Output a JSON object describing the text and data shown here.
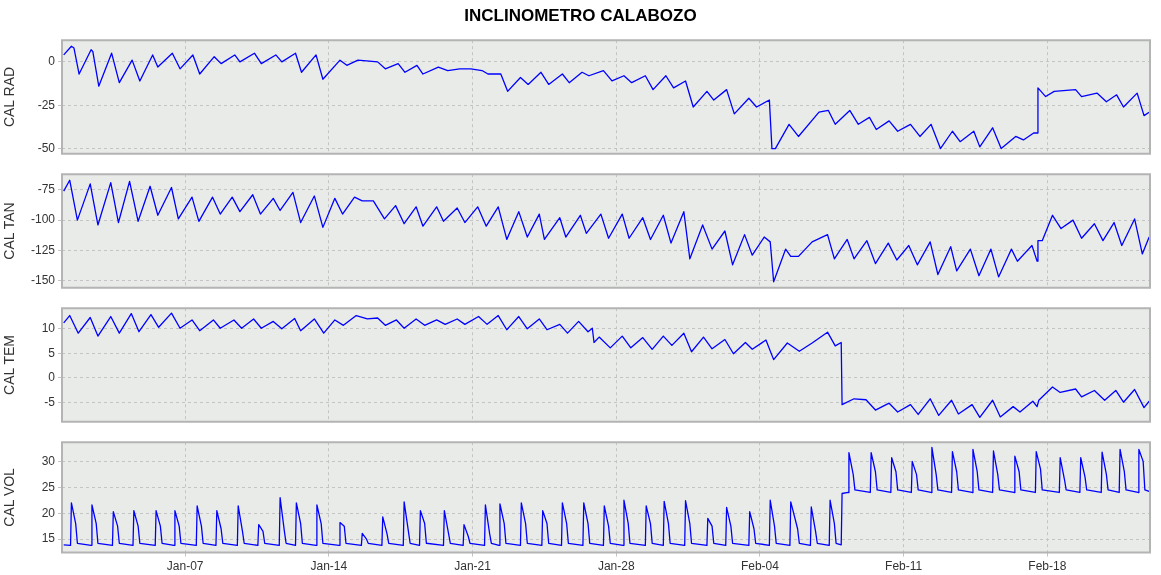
{
  "chart_data": [
    {
      "type": "line",
      "title": "INCLINOMETRO CALABOZO",
      "ylabel": "CAL RAD",
      "xlim": [
        "--01-01",
        "--02-23"
      ],
      "xticks": [
        {
          "value": "--01-07",
          "label": null
        },
        {
          "value": "--01-14",
          "label": null
        },
        {
          "value": "--01-21",
          "label": null
        },
        {
          "value": "--01-28",
          "label": null
        },
        {
          "value": "--02-04",
          "label": null
        },
        {
          "value": "--02-11",
          "label": null
        },
        {
          "value": "--02-18",
          "label": null
        }
      ],
      "ylim": [
        -53,
        12.5
      ],
      "yticks": [
        -50,
        -25,
        0
      ],
      "grid": true,
      "tick_labels": "y",
      "series": [
        {
          "color": "#0000ff",
          "x": [
            "--01-01T02:00",
            "--01-01T11:00",
            "--01-01T14:00",
            "--01-01T20:00",
            "--01-02T10:00",
            "--01-02T12:00",
            "--01-02T19:00",
            "--01-03T10:00",
            "--01-03T19:00",
            "--01-04T10:00",
            "--01-04T19:00",
            "--01-05T10:00",
            "--01-05T16:00",
            "--01-06T09:00",
            "--01-06T18:00",
            "--01-07T09:00",
            "--01-07T17:00",
            "--01-08T10:00",
            "--01-08T18:00",
            "--01-09T10:00",
            "--01-09T16:00",
            "--01-10T09:00",
            "--01-10T17:00",
            "--01-11T10:00",
            "--01-11T17:00",
            "--01-12T09:00",
            "--01-12T16:00",
            "--01-13T09:00",
            "--01-13T17:00",
            "--01-14T13:00",
            "--01-14T21:00",
            "--01-15T10:00",
            "--01-16T09:00",
            "--01-16T18:00",
            "--01-17T09:00",
            "--01-17T17:00",
            "--01-18T07:00",
            "--01-18T14:00",
            "--01-19T08:00",
            "--01-19T19:00",
            "--01-20T09:00",
            "--01-20T22:00",
            "--01-21T11:00",
            "--01-21T18:00",
            "--01-22T09:00",
            "--01-22T17:00",
            "--01-23T08:00",
            "--01-23T17:00",
            "--01-24T08:00",
            "--01-24T17:00",
            "--01-25T09:00",
            "--01-25T17:00",
            "--01-26T08:00",
            "--01-26T16:00",
            "--01-27T09:00",
            "--01-27T19:00",
            "--01-28T09:00",
            "--01-28T18:00",
            "--01-29T10:00",
            "--01-29T19:00",
            "--01-30T10:00",
            "--01-30T19:00",
            "--01-31T09:00",
            "--01-31T18:00",
            "--02-01T10:00",
            "--02-01T18:00",
            "--02-02T09:00",
            "--02-02T18:00",
            "--02-03T11:00",
            "--02-03T20:00",
            "--02-04T11:00",
            "--02-04T14:00",
            "--02-04T18:00",
            "--02-05T10:00",
            "--02-05T21:00",
            "--02-06T21:00",
            "--02-07T08:00",
            "--02-07T16:00",
            "--02-08T09:00",
            "--02-08T19:00",
            "--02-09T08:00",
            "--02-09T16:00",
            "--02-10T07:00",
            "--02-10T17:00",
            "--02-11T08:00",
            "--02-11T19:00",
            "--02-12T08:00",
            "--02-12T19:00",
            "--02-13T09:00",
            "--02-13T18:00",
            "--02-14T10:00",
            "--02-14T17:00",
            "--02-15T08:00",
            "--02-15T18:00",
            "--02-16T11:00",
            "--02-16T20:00",
            "--02-17T08:00",
            "--02-17T12:00",
            "--02-17T13:00",
            "--02-17T22:00",
            "--02-18T08:00",
            "--02-19T09:00",
            "--02-19T16:00",
            "--02-20T10:00",
            "--02-20T21:00",
            "--02-21T09:00",
            "--02-21T17:00",
            "--02-22T09:00",
            "--02-22T17:00",
            "--02-22T23:00"
          ],
          "values": [
            4,
            9,
            8,
            -7,
            7,
            6,
            -14,
            5,
            -12,
            1,
            -11,
            4,
            -3,
            5,
            -4,
            4,
            -7,
            3,
            -1,
            4,
            0,
            5,
            -1,
            4,
            0,
            5,
            -6,
            4,
            -10,
            1,
            -2,
            1,
            0,
            -4,
            -1,
            -6,
            -2,
            -7,
            -3,
            -5,
            -4,
            -4,
            -5,
            -7,
            -7,
            -17,
            -9,
            -13,
            -6,
            -13,
            -7,
            -12,
            -6,
            -8,
            -5,
            -11,
            -8,
            -12,
            -8,
            -16,
            -8,
            -15,
            -11,
            -26,
            -17,
            -22,
            -16,
            -30,
            -21,
            -26,
            -22,
            -50,
            -50,
            -36,
            -43,
            -29,
            -28,
            -36,
            -28,
            -36,
            -32,
            -39,
            -34,
            -40,
            -36,
            -43,
            -36,
            -50,
            -40,
            -46,
            -40,
            -49,
            -38,
            -50,
            -43,
            -45,
            -41,
            -41,
            -15,
            -20,
            -17,
            -16,
            -20,
            -18,
            -23,
            -19,
            -26,
            -18,
            -31,
            -29
          ]
        }
      ]
    },
    {
      "type": "line",
      "ylabel": "CAL TAN",
      "xlim": [
        "--01-01",
        "--02-23"
      ],
      "xticks": [
        {
          "value": "--01-07",
          "label": null
        },
        {
          "value": "--01-14",
          "label": null
        },
        {
          "value": "--01-21",
          "label": null
        },
        {
          "value": "--01-28",
          "label": null
        },
        {
          "value": "--02-04",
          "label": null
        },
        {
          "value": "--02-11",
          "label": null
        },
        {
          "value": "--02-18",
          "label": null
        }
      ],
      "ylim": [
        -156,
        -62
      ],
      "yticks": [
        -150,
        -125,
        -100,
        -75
      ],
      "grid": true,
      "tick_labels": "y",
      "series": [
        {
          "color": "#0000ff",
          "x": [
            "--01-01T02:00",
            "--01-01T09:00",
            "--01-01T18:00",
            "--01-02T09:00",
            "--01-02T18:00",
            "--01-03T09:00",
            "--01-03T18:00",
            "--01-04T07:00",
            "--01-04T17:00",
            "--01-05T07:00",
            "--01-05T16:00",
            "--01-06T08:00",
            "--01-06T16:00",
            "--01-07T08:00",
            "--01-07T16:00",
            "--01-08T08:00",
            "--01-08T17:00",
            "--01-09T07:00",
            "--01-09T16:00",
            "--01-10T07:00",
            "--01-10T16:00",
            "--01-11T07:00",
            "--01-11T15:00",
            "--01-12T06:00",
            "--01-12T15:00",
            "--01-13T07:00",
            "--01-13T17:00",
            "--01-14T07:00",
            "--01-14T16:00",
            "--01-15T06:00",
            "--01-15T15:00",
            "--01-16T04:00",
            "--01-16T17:00",
            "--01-17T06:00",
            "--01-17T16:00",
            "--01-18T06:00",
            "--01-18T14:00",
            "--01-19T06:00",
            "--01-19T14:00",
            "--01-20T06:00",
            "--01-20T15:00",
            "--01-21T06:00",
            "--01-21T16:00",
            "--01-22T06:00",
            "--01-22T16:00",
            "--01-23T06:00",
            "--01-23T16:00",
            "--01-24T06:00",
            "--01-24T12:00",
            "--01-25T06:00",
            "--01-25T13:00",
            "--01-26T06:00",
            "--01-26T13:00",
            "--01-27T06:00",
            "--01-27T15:00",
            "--01-28T07:00",
            "--01-28T15:00",
            "--01-29T07:00",
            "--01-29T16:00",
            "--01-30T07:00",
            "--01-30T16:00",
            "--01-31T07:00",
            "--01-31T14:00",
            "--02-01T05:00",
            "--02-01T16:00",
            "--02-02T07:00",
            "--02-02T16:00",
            "--02-03T06:00",
            "--02-03T15:00",
            "--02-04T05:00",
            "--02-04T12:00",
            "--02-04T16:00",
            "--02-05T06:00",
            "--02-05T12:00",
            "--02-05T21:00",
            "--02-06T13:00",
            "--02-07T07:00",
            "--02-07T15:00",
            "--02-08T06:00",
            "--02-08T14:00",
            "--02-09T05:00",
            "--02-09T15:00",
            "--02-10T06:00",
            "--02-10T16:00",
            "--02-11T06:00",
            "--02-11T16:00",
            "--02-12T07:00",
            "--02-12T16:00",
            "--02-13T07:00",
            "--02-13T14:00",
            "--02-14T06:00",
            "--02-14T16:00",
            "--02-15T06:00",
            "--02-15T15:00",
            "--02-16T06:00",
            "--02-16T13:00",
            "--02-17T06:00",
            "--02-17T12:00",
            "--02-17T13:00",
            "--02-17T18:00",
            "--02-18T06:00",
            "--02-18T16:00",
            "--02-19T06:00",
            "--02-19T16:00",
            "--02-20T07:00",
            "--02-20T17:00",
            "--02-21T06:00",
            "--02-21T15:00",
            "--02-22T06:00",
            "--02-22T15:00",
            "--02-22T23:00"
          ],
          "values": [
            -76,
            -67,
            -100,
            -70,
            -104,
            -69,
            -102,
            -68,
            -101,
            -72,
            -96,
            -73,
            -99,
            -81,
            -101,
            -81,
            -95,
            -81,
            -93,
            -79,
            -95,
            -82,
            -92,
            -77,
            -102,
            -80,
            -106,
            -82,
            -95,
            -81,
            -84,
            -84,
            -99,
            -88,
            -103,
            -89,
            -105,
            -89,
            -101,
            -90,
            -102,
            -89,
            -105,
            -89,
            -116,
            -93,
            -114,
            -95,
            -116,
            -98,
            -114,
            -96,
            -111,
            -95,
            -115,
            -95,
            -115,
            -98,
            -116,
            -96,
            -119,
            -93,
            -132,
            -104,
            -124,
            -109,
            -137,
            -112,
            -129,
            -114,
            -118,
            -151,
            -124,
            -130,
            -130,
            -118,
            -112,
            -132,
            -116,
            -132,
            -117,
            -136,
            -119,
            -133,
            -121,
            -137,
            -118,
            -145,
            -122,
            -142,
            -124,
            -146,
            -124,
            -147,
            -124,
            -134,
            -121,
            -134,
            -117,
            -117,
            -96,
            -107,
            -100,
            -115,
            -103,
            -117,
            -102,
            -121,
            -99,
            -128,
            -114
          ]
        }
      ]
    },
    {
      "type": "line",
      "ylabel": "CAL TEM",
      "xlim": [
        "--01-01",
        "--02-23"
      ],
      "xticks": [
        {
          "value": "--01-07",
          "label": null
        },
        {
          "value": "--01-14",
          "label": null
        },
        {
          "value": "--01-21",
          "label": null
        },
        {
          "value": "--01-28",
          "label": null
        },
        {
          "value": "--02-04",
          "label": null
        },
        {
          "value": "--02-11",
          "label": null
        },
        {
          "value": "--02-18",
          "label": null
        }
      ],
      "ylim": [
        -9,
        14.2
      ],
      "yticks": [
        -5,
        0,
        5,
        10
      ],
      "grid": true,
      "tick_labels": "y",
      "series": [
        {
          "color": "#0000ff",
          "x": [
            "--01-01T02:00",
            "--01-01T09:00",
            "--01-01T19:00",
            "--01-02T09:00",
            "--01-02T18:00",
            "--01-03T09:00",
            "--01-03T19:00",
            "--01-04T09:00",
            "--01-04T18:00",
            "--01-05T08:00",
            "--01-05T17:00",
            "--01-06T08:00",
            "--01-06T18:00",
            "--01-07T08:00",
            "--01-07T17:00",
            "--01-08T09:00",
            "--01-08T17:00",
            "--01-09T09:00",
            "--01-09T18:00",
            "--01-10T08:00",
            "--01-10T17:00",
            "--01-11T07:00",
            "--01-11T17:00",
            "--01-12T08:00",
            "--01-12T15:00",
            "--01-13T07:00",
            "--01-13T18:00",
            "--01-14T07:00",
            "--01-14T17:00",
            "--01-15T08:00",
            "--01-15T21:00",
            "--01-16T09:00",
            "--01-16T18:00",
            "--01-17T07:00",
            "--01-17T16:00",
            "--01-18T06:00",
            "--01-18T16:00",
            "--01-19T06:00",
            "--01-19T16:00",
            "--01-20T06:00",
            "--01-20T15:00",
            "--01-21T07:00",
            "--01-21T17:00",
            "--01-22T06:00",
            "--01-22T16:00",
            "--01-23T06:00",
            "--01-23T16:00",
            "--01-24T06:00",
            "--01-24T15:00",
            "--01-25T06:00",
            "--01-25T15:00",
            "--01-26T04:00",
            "--01-26T15:00",
            "--01-26T20:00",
            "--01-26T22:00",
            "--01-27T04:00",
            "--01-27T17:00",
            "--01-28T07:00",
            "--01-28T17:00",
            "--01-29T07:00",
            "--01-29T18:00",
            "--01-30T07:00",
            "--01-30T17:00",
            "--01-31T07:00",
            "--01-31T16:00",
            "--02-01T06:00",
            "--02-01T16:00",
            "--02-02T07:00",
            "--02-02T17:00",
            "--02-03T07:00",
            "--02-03T15:00",
            "--02-04T07:00",
            "--02-04T16:00",
            "--02-05T08:00",
            "--02-05T22:00",
            "--02-06T13:00",
            "--02-07T07:00",
            "--02-07T16:00",
            "--02-07T23:00",
            "--02-08T00:00",
            "--02-08T14:00",
            "--02-09T04:00",
            "--02-09T15:00",
            "--02-10T07:00",
            "--02-10T17:00",
            "--02-11T08:00",
            "--02-11T17:00",
            "--02-12T07:00",
            "--02-12T17:00",
            "--02-13T08:00",
            "--02-13T16:00",
            "--02-14T08:00",
            "--02-14T17:00",
            "--02-15T08:00",
            "--02-15T17:00",
            "--02-16T08:00",
            "--02-16T16:00",
            "--02-17T07:00",
            "--02-17T12:00",
            "--02-17T14:00",
            "--02-18T06:00",
            "--02-18T15:00",
            "--02-19T09:00",
            "--02-19T16:00",
            "--02-20T07:00",
            "--02-20T19:00",
            "--02-21T08:00",
            "--02-21T17:00",
            "--02-22T06:00",
            "--02-22T17:00",
            "--02-22T23:00"
          ],
          "values": [
            11.2,
            12.7,
            9.1,
            12.3,
            8.5,
            12.5,
            9.1,
            13.1,
            9.4,
            12.9,
            10.3,
            13.2,
            10.1,
            11.8,
            9.6,
            11.8,
            10.1,
            11.8,
            10.1,
            12,
            10.1,
            11.5,
            10,
            12.1,
            9.6,
            12,
            9.1,
            11.8,
            10.7,
            12.7,
            12,
            12.2,
            10.7,
            11.8,
            10.1,
            12,
            10.7,
            11.8,
            10.9,
            12,
            10.9,
            12.5,
            10.9,
            12.7,
            9.8,
            12.5,
            10,
            12,
            9.8,
            10.9,
            9.1,
            11.5,
            9.4,
            10.1,
            7.2,
            8.3,
            6.1,
            8.5,
            6.1,
            8.2,
            5.8,
            8.5,
            6.6,
            9.1,
            5.3,
            8.3,
            5.9,
            7.8,
            4.9,
            7.2,
            5.8,
            7.7,
            3.7,
            7.1,
            5.4,
            7.1,
            9.3,
            6.5,
            7.2,
            -5.5,
            -4.3,
            -4.5,
            -6.6,
            -5.2,
            -7,
            -5.5,
            -7.5,
            -4.3,
            -7.7,
            -4.6,
            -7.4,
            -5.5,
            -8.1,
            -4.6,
            -8,
            -5.9,
            -7,
            -4.8,
            -5.9,
            -4.6,
            -1.9,
            -3,
            -2.3,
            -3.9,
            -2.6,
            -4.6,
            -2.6,
            -5,
            -2.4,
            -6.1,
            -4.8
          ]
        }
      ]
    },
    {
      "type": "line",
      "ylabel": "CAL VOL",
      "xlim": [
        "--01-01",
        "--02-23"
      ],
      "xticks": [
        {
          "value": "--01-07",
          "label": "Jan-07"
        },
        {
          "value": "--01-14",
          "label": "Jan-14"
        },
        {
          "value": "--01-21",
          "label": "Jan-21"
        },
        {
          "value": "--01-28",
          "label": "Jan-28"
        },
        {
          "value": "--02-04",
          "label": "Feb-04"
        },
        {
          "value": "--02-11",
          "label": "Feb-11"
        },
        {
          "value": "--02-18",
          "label": "Feb-18"
        }
      ],
      "ylim": [
        12.4,
        33.7
      ],
      "yticks": [
        15,
        20,
        25,
        30
      ],
      "grid": true,
      "series": [
        {
          "color": "#0000ff",
          "x": [
            "--01-01T02:00",
            "--01-01T10:00",
            "--01-01T11:00",
            "--01-01T16:00",
            "--01-01T18:00",
            "--01-02T10:00",
            "--01-02T11:00",
            "--01-02T16:00",
            "--01-02T18:00",
            "--01-03T11:00",
            "--01-03T12:00",
            "--01-03T17:00",
            "--01-03T19:00",
            "--01-04T11:00",
            "--01-04T12:00",
            "--01-04T17:00",
            "--01-04T19:00",
            "--01-05T13:00",
            "--01-05T14:00",
            "--01-05T19:00",
            "--01-05T21:00",
            "--01-06T11:00",
            "--01-06T12:00",
            "--01-06T17:00",
            "--01-06T19:00",
            "--01-07T13:00",
            "--01-07T14:00",
            "--01-07T19:00",
            "--01-07T21:00",
            "--01-08T12:00",
            "--01-08T13:00",
            "--01-08T18:00",
            "--01-08T20:00",
            "--01-09T13:00",
            "--01-09T14:00",
            "--01-09T19:00",
            "--01-09T21:00",
            "--01-10T13:00",
            "--01-10T14:00",
            "--01-10T19:00",
            "--01-10T21:00",
            "--01-11T14:00",
            "--01-11T15:00",
            "--01-11T20:00",
            "--01-11T22:00",
            "--01-12T09:00",
            "--01-12T10:00",
            "--01-12T15:00",
            "--01-12T17:00",
            "--01-13T09:00",
            "--01-13T10:00",
            "--01-13T15:00",
            "--01-13T17:00",
            "--01-14T12:00",
            "--01-14T13:00",
            "--01-14T18:00",
            "--01-14T20:00",
            "--01-15T14:00",
            "--01-15T15:00",
            "--01-15T20:00",
            "--01-15T22:00",
            "--01-16T14:00",
            "--01-16T15:00",
            "--01-16T20:00",
            "--01-16T22:00",
            "--01-17T15:00",
            "--01-17T16:00",
            "--01-17T21:00",
            "--01-17T23:00",
            "--01-18T10:00",
            "--01-18T11:00",
            "--01-18T16:00",
            "--01-18T18:00",
            "--01-19T14:00",
            "--01-19T15:00",
            "--01-19T20:00",
            "--01-19T22:00",
            "--01-20T13:00",
            "--01-20T14:00",
            "--01-20T19:00",
            "--01-20T21:00",
            "--01-21T14:00",
            "--01-21T15:00",
            "--01-21T20:00",
            "--01-21T22:00",
            "--01-22T07:00",
            "--01-22T08:00",
            "--01-22T13:00",
            "--01-22T15:00",
            "--01-23T08:00",
            "--01-23T09:00",
            "--01-23T14:00",
            "--01-23T16:00",
            "--01-24T09:00",
            "--01-24T10:00",
            "--01-24T15:00",
            "--01-24T17:00",
            "--01-25T08:00",
            "--01-25T09:00",
            "--01-25T14:00",
            "--01-25T16:00",
            "--01-26T09:00",
            "--01-26T10:00",
            "--01-26T15:00",
            "--01-26T17:00",
            "--01-27T09:00",
            "--01-27T10:00",
            "--01-27T15:00",
            "--01-27T17:00",
            "--01-28T08:00",
            "--01-28T09:00",
            "--01-28T14:00",
            "--01-28T16:00",
            "--01-29T10:00",
            "--01-29T11:00",
            "--01-29T16:00",
            "--01-29T18:00",
            "--01-30T07:00",
            "--01-30T08:00",
            "--01-30T13:00",
            "--01-30T15:00",
            "--01-31T08:00",
            "--01-31T09:00",
            "--01-31T14:00",
            "--01-31T16:00",
            "--02-01T10:00",
            "--02-01T11:00",
            "--02-01T16:00",
            "--02-01T18:00",
            "--02-02T08:00",
            "--02-02T09:00",
            "--02-02T14:00",
            "--02-02T16:00",
            "--02-03T11:00",
            "--02-03T12:00",
            "--02-03T17:00",
            "--02-03T19:00",
            "--02-04T11:00",
            "--02-04T12:00",
            "--02-04T17:00",
            "--02-04T19:00",
            "--02-05T11:00",
            "--02-05T12:00",
            "--02-05T20:00",
            "--02-05T22:00",
            "--02-06T11:00",
            "--02-06T12:00",
            "--02-06T17:00",
            "--02-06T19:00",
            "--02-07T09:00",
            "--02-07T10:00",
            "--02-07T15:00",
            "--02-07T17:00",
            "--02-07T23:00",
            "--02-08T00:00",
            "--02-08T07:00",
            "--02-08T08:00",
            "--02-08T13:00",
            "--02-08T15:00",
            "--02-09T09:00",
            "--02-09T10:00",
            "--02-09T15:00",
            "--02-09T17:00",
            "--02-10T09:00",
            "--02-10T10:00",
            "--02-10T15:00",
            "--02-10T17:00",
            "--02-11T09:00",
            "--02-11T10:00",
            "--02-11T15:00",
            "--02-11T17:00",
            "--02-12T08:00",
            "--02-12T09:00",
            "--02-12T14:00",
            "--02-12T16:00",
            "--02-13T08:00",
            "--02-13T09:00",
            "--02-13T14:00",
            "--02-13T16:00",
            "--02-14T08:00",
            "--02-14T09:00",
            "--02-14T14:00",
            "--02-14T16:00",
            "--02-15T08:00",
            "--02-15T09:00",
            "--02-15T14:00",
            "--02-15T16:00",
            "--02-16T09:00",
            "--02-16T10:00",
            "--02-16T15:00",
            "--02-16T17:00",
            "--02-17T10:00",
            "--02-17T11:00",
            "--02-17T16:00",
            "--02-17T18:00",
            "--02-18T14:00",
            "--02-18T15:00",
            "--02-18T20:00",
            "--02-18T22:00",
            "--02-19T14:00",
            "--02-19T15:00",
            "--02-19T20:00",
            "--02-19T22:00",
            "--02-20T15:00",
            "--02-20T16:00",
            "--02-20T21:00",
            "--02-20T23:00",
            "--02-21T12:00",
            "--02-21T13:00",
            "--02-21T18:00",
            "--02-21T20:00",
            "--02-22T10:00",
            "--02-22T11:00",
            "--02-22T16:00",
            "--02-22T18:00",
            "--02-22T23:00"
          ],
          "values": [
            13.9,
            13.8,
            22,
            18,
            14.2,
            13.8,
            21.6,
            18,
            14.2,
            13.8,
            20.3,
            17.5,
            14.2,
            13.8,
            20.5,
            17.5,
            14.2,
            13.8,
            20.5,
            17.5,
            14.2,
            13.8,
            20.5,
            17.5,
            14.2,
            13.8,
            21.4,
            17.5,
            14.2,
            13.8,
            20.5,
            17,
            14.2,
            13.8,
            21.4,
            16.5,
            14.2,
            13.8,
            17.8,
            16.5,
            14.2,
            13.8,
            23,
            16.5,
            14.2,
            13.8,
            22,
            18,
            14.2,
            13.8,
            21.6,
            18,
            14.2,
            13.8,
            18.2,
            17.5,
            14.2,
            13.8,
            16.1,
            15,
            14.2,
            13.8,
            19.3,
            16,
            14.2,
            13.8,
            22.2,
            16.5,
            14.2,
            13.8,
            20.5,
            18,
            14.2,
            13.8,
            20.5,
            16,
            14.2,
            13.8,
            17.8,
            15.5,
            14.2,
            13.8,
            21.6,
            16,
            14.2,
            13.8,
            21.8,
            18,
            14.2,
            13.8,
            22,
            18,
            14.2,
            13.8,
            20.5,
            18,
            14.2,
            13.8,
            22,
            18,
            14.2,
            13.8,
            22,
            18,
            14.2,
            13.8,
            21.4,
            17.5,
            14.2,
            13.8,
            22.5,
            18,
            14.2,
            13.8,
            21.4,
            18,
            14.2,
            13.8,
            22.3,
            18,
            14.2,
            13.8,
            22.4,
            18,
            14.2,
            13.8,
            19,
            17.5,
            14.2,
            13.8,
            21.1,
            17.5,
            14.2,
            13.8,
            20.3,
            17,
            14.2,
            13.8,
            22.5,
            17.5,
            14.2,
            13.8,
            22.2,
            17,
            14.2,
            13.8,
            21.2,
            16.5,
            14.2,
            13.8,
            22.5,
            18,
            14.2,
            13.9,
            23.8,
            24,
            31.7,
            27.5,
            24.5,
            24,
            31.7,
            28,
            24.5,
            24,
            30.7,
            28,
            24.5,
            24,
            30,
            27.5,
            24.5,
            24,
            32.7,
            27.5,
            24.5,
            24,
            31.9,
            28,
            24.5,
            24,
            32.3,
            28,
            24.5,
            24,
            32,
            27.5,
            24.5,
            24,
            31,
            28,
            24.5,
            24,
            31.9,
            28.5,
            24.5,
            24,
            30.7,
            26.5,
            24.5,
            24,
            30.7,
            27,
            24.5,
            24,
            31.8,
            27.5,
            24.5,
            24,
            32.3,
            28,
            24.5,
            24,
            32.3,
            30,
            24.5,
            24.2
          ]
        }
      ]
    }
  ]
}
